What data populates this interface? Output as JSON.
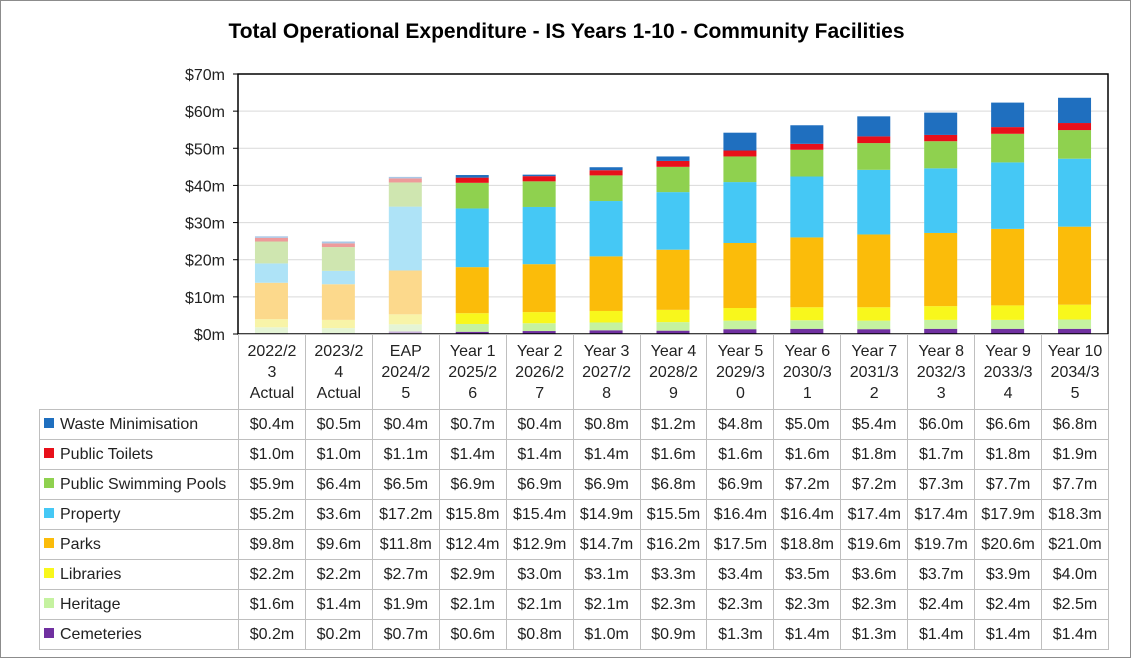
{
  "chart_data": {
    "type": "stacked-bar",
    "title": "Total Operational Expenditure - IS Years 1-10 - Community Facilities",
    "ylim": [
      0,
      70
    ],
    "y_ticks": [
      "$0m",
      "$10m",
      "$20m",
      "$30m",
      "$40m",
      "$50m",
      "$60m",
      "$70m"
    ],
    "y_tick_values": [
      0,
      10,
      20,
      30,
      40,
      50,
      60,
      70
    ],
    "categories": [
      [
        "2022/2",
        "3",
        "Actual"
      ],
      [
        "2023/2",
        "4",
        "Actual"
      ],
      [
        "EAP",
        "2024/2",
        "5"
      ],
      [
        "Year 1",
        "2025/2",
        "6"
      ],
      [
        "Year 2",
        "2026/2",
        "7"
      ],
      [
        "Year 3",
        "2027/2",
        "8"
      ],
      [
        "Year 4",
        "2028/2",
        "9"
      ],
      [
        "Year 5",
        "2029/3",
        "0"
      ],
      [
        "Year 6",
        "2030/3",
        "1"
      ],
      [
        "Year 7",
        "2031/3",
        "2"
      ],
      [
        "Year 8",
        "2032/3",
        "3"
      ],
      [
        "Year 9",
        "2033/3",
        "4"
      ],
      [
        "Year 10",
        "2034/3",
        "5"
      ]
    ],
    "faded_columns": [
      0,
      1,
      2
    ],
    "stack_order": [
      "Cemeteries",
      "Heritage",
      "Libraries",
      "Parks",
      "Property",
      "Public Swimming Pools",
      "Public Toilets",
      "Waste Minimisation"
    ],
    "series": [
      {
        "name": "Waste Minimisation",
        "color": "#1f6fbf",
        "faded_color": "#a9c7e6",
        "values": [
          0.4,
          0.5,
          0.4,
          0.7,
          0.4,
          0.8,
          1.2,
          4.8,
          5.0,
          5.4,
          6.0,
          6.6,
          6.8
        ],
        "labels": [
          "$0.4m",
          "$0.5m",
          "$0.4m",
          "$0.7m",
          "$0.4m",
          "$0.8m",
          "$1.2m",
          "$4.8m",
          "$5.0m",
          "$5.4m",
          "$6.0m",
          "$6.6m",
          "$6.8m"
        ]
      },
      {
        "name": "Public Toilets",
        "color": "#e8101a",
        "faded_color": "#ee9a9a",
        "values": [
          1.0,
          1.0,
          1.1,
          1.4,
          1.4,
          1.4,
          1.6,
          1.6,
          1.6,
          1.8,
          1.7,
          1.8,
          1.9
        ],
        "labels": [
          "$1.0m",
          "$1.0m",
          "$1.1m",
          "$1.4m",
          "$1.4m",
          "$1.4m",
          "$1.6m",
          "$1.6m",
          "$1.6m",
          "$1.8m",
          "$1.7m",
          "$1.8m",
          "$1.9m"
        ]
      },
      {
        "name": "Public Swimming Pools",
        "color": "#8fd14f",
        "faded_color": "#cfe6b0",
        "values": [
          5.9,
          6.4,
          6.5,
          6.9,
          6.9,
          6.9,
          6.8,
          6.9,
          7.2,
          7.2,
          7.3,
          7.7,
          7.7
        ],
        "labels": [
          "$5.9m",
          "$6.4m",
          "$6.5m",
          "$6.9m",
          "$6.9m",
          "$6.9m",
          "$6.8m",
          "$6.9m",
          "$7.2m",
          "$7.2m",
          "$7.3m",
          "$7.7m",
          "$7.7m"
        ]
      },
      {
        "name": "Property",
        "color": "#45c8f5",
        "faded_color": "#aee3f7",
        "values": [
          5.2,
          3.6,
          17.2,
          15.8,
          15.4,
          14.9,
          15.5,
          16.4,
          16.4,
          17.4,
          17.4,
          17.9,
          18.3
        ],
        "labels": [
          "$5.2m",
          "$3.6m",
          "$17.2m",
          "$15.8m",
          "$15.4m",
          "$14.9m",
          "$15.5m",
          "$16.4m",
          "$16.4m",
          "$17.4m",
          "$17.4m",
          "$17.9m",
          "$18.3m"
        ]
      },
      {
        "name": "Parks",
        "color": "#fbbc0a",
        "faded_color": "#fcd98c",
        "values": [
          9.8,
          9.6,
          11.8,
          12.4,
          12.9,
          14.7,
          16.2,
          17.5,
          18.8,
          19.6,
          19.7,
          20.6,
          21.0
        ],
        "labels": [
          "$9.8m",
          "$9.6m",
          "$11.8m",
          "$12.4m",
          "$12.9m",
          "$14.7m",
          "$16.2m",
          "$17.5m",
          "$18.8m",
          "$19.6m",
          "$19.7m",
          "$20.6m",
          "$21.0m"
        ]
      },
      {
        "name": "Libraries",
        "color": "#f8f71c",
        "faded_color": "#f8f4a8",
        "values": [
          2.2,
          2.2,
          2.7,
          2.9,
          3.0,
          3.1,
          3.3,
          3.4,
          3.5,
          3.6,
          3.7,
          3.9,
          4.0
        ],
        "labels": [
          "$2.2m",
          "$2.2m",
          "$2.7m",
          "$2.9m",
          "$3.0m",
          "$3.1m",
          "$3.3m",
          "$3.4m",
          "$3.5m",
          "$3.6m",
          "$3.7m",
          "$3.9m",
          "$4.0m"
        ]
      },
      {
        "name": "Heritage",
        "color": "#c5f2a0",
        "faded_color": "#e5f5d6",
        "values": [
          1.6,
          1.4,
          1.9,
          2.1,
          2.1,
          2.1,
          2.3,
          2.3,
          2.3,
          2.3,
          2.4,
          2.4,
          2.5
        ],
        "labels": [
          "$1.6m",
          "$1.4m",
          "$1.9m",
          "$2.1m",
          "$2.1m",
          "$2.1m",
          "$2.3m",
          "$2.3m",
          "$2.3m",
          "$2.3m",
          "$2.4m",
          "$2.4m",
          "$2.5m"
        ]
      },
      {
        "name": "Cemeteries",
        "color": "#7030a0",
        "faded_color": "#c9b1db",
        "values": [
          0.2,
          0.2,
          0.7,
          0.6,
          0.8,
          1.0,
          0.9,
          1.3,
          1.4,
          1.3,
          1.4,
          1.4,
          1.4
        ],
        "labels": [
          "$0.2m",
          "$0.2m",
          "$0.7m",
          "$0.6m",
          "$0.8m",
          "$1.0m",
          "$0.9m",
          "$1.3m",
          "$1.4m",
          "$1.3m",
          "$1.4m",
          "$1.4m",
          "$1.4m"
        ]
      }
    ]
  }
}
